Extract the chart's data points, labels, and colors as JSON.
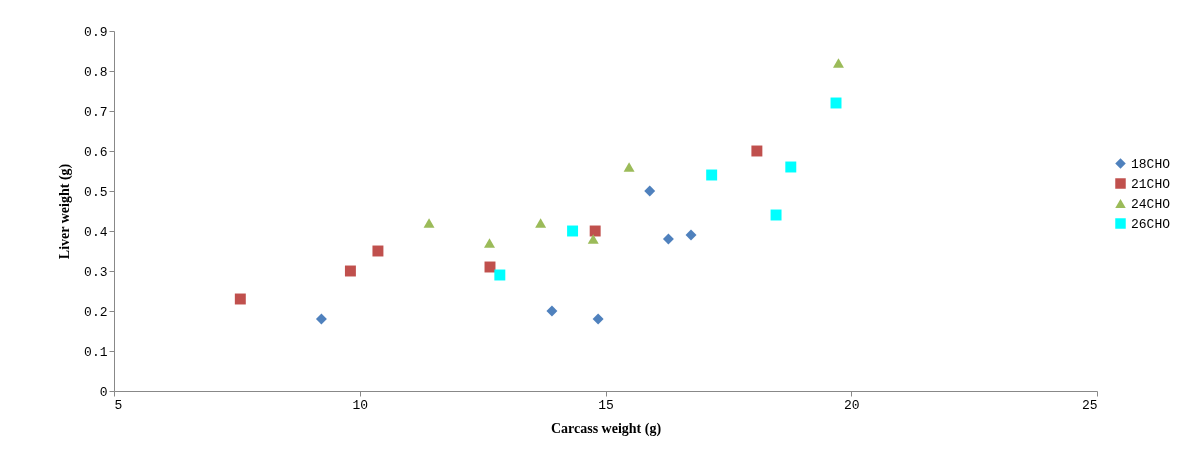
{
  "chart_data": {
    "type": "scatter",
    "xlabel": "Carcass weight (g)",
    "ylabel": "Liver weight (g)",
    "xlim": [
      5,
      25
    ],
    "xticks": [
      5,
      10,
      15,
      20,
      25
    ],
    "ylim": [
      0,
      0.9
    ],
    "yticks": [
      0,
      0.1,
      0.2,
      0.3,
      0.4,
      0.5,
      0.6,
      0.7,
      0.8,
      0.9
    ],
    "grid": false,
    "legend": "right",
    "series": [
      {
        "name": "18CHO",
        "color": "#4f81bd",
        "marker": "diamond",
        "x": [
          9.22,
          13.91,
          14.85,
          15.9,
          16.28,
          16.74
        ],
        "values": [
          0.18,
          0.2,
          0.18,
          0.5,
          0.38,
          0.39
        ]
      },
      {
        "name": "21CHO",
        "color": "#c0504d",
        "marker": "square",
        "x": [
          7.57,
          9.81,
          10.37,
          12.65,
          14.79,
          18.08
        ],
        "values": [
          0.23,
          0.3,
          0.35,
          0.31,
          0.4,
          0.6
        ]
      },
      {
        "name": "24CHO",
        "color": "#9bbb59",
        "marker": "triangle",
        "x": [
          11.41,
          12.64,
          13.68,
          14.75,
          15.48,
          19.74
        ],
        "values": [
          0.42,
          0.37,
          0.42,
          0.38,
          0.56,
          0.82
        ]
      },
      {
        "name": "26CHO",
        "color": "#00ffff",
        "marker": "square",
        "x": [
          12.85,
          14.33,
          17.16,
          18.47,
          18.77,
          19.69
        ],
        "values": [
          0.29,
          0.4,
          0.54,
          0.44,
          0.56,
          0.72
        ]
      }
    ]
  }
}
